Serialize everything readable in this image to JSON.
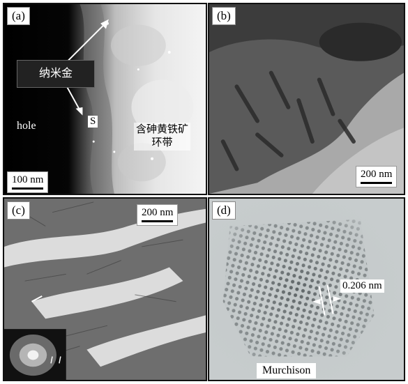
{
  "panels": {
    "a": {
      "label": "(a)",
      "scale": "100 nm",
      "callout": "纳米金",
      "hole": "hole",
      "s_marker": "S",
      "rim_label_line1": "含砷黄铁矿",
      "rim_label_line2": "环带"
    },
    "b": {
      "label": "(b)",
      "scale": "200 nm"
    },
    "c": {
      "label": "(c)",
      "scale": "200 nm"
    },
    "d": {
      "label": "(d)",
      "spacing": "0.206 nm",
      "sample": "Murchison"
    }
  }
}
